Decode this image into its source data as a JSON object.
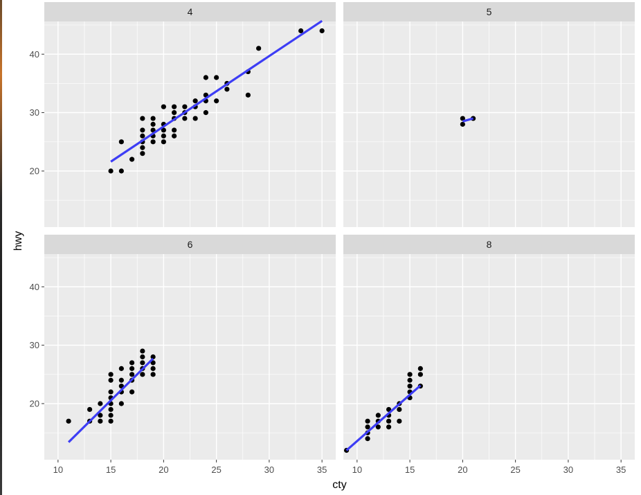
{
  "chart_data": {
    "type": "scatter",
    "xlabel": "cty",
    "ylabel": "hwy",
    "xlim": [
      8.7,
      36.3
    ],
    "ylim": [
      10.4,
      45.6
    ],
    "x_ticks": [
      10,
      15,
      20,
      25,
      30,
      35
    ],
    "y_ticks": [
      20,
      30,
      40
    ],
    "grid": true,
    "smooth": {
      "method": "lm",
      "color": "#3d3df5"
    },
    "panels": [
      {
        "label": "4",
        "points": [
          [
            15,
            20
          ],
          [
            16,
            20
          ],
          [
            16,
            25
          ],
          [
            17,
            22
          ],
          [
            18,
            23
          ],
          [
            18,
            24
          ],
          [
            18,
            25
          ],
          [
            18,
            26
          ],
          [
            18,
            27
          ],
          [
            18,
            29
          ],
          [
            19,
            25
          ],
          [
            19,
            26
          ],
          [
            19,
            27
          ],
          [
            19,
            28
          ],
          [
            19,
            29
          ],
          [
            20,
            25
          ],
          [
            20,
            26
          ],
          [
            20,
            27
          ],
          [
            20,
            28
          ],
          [
            20,
            31
          ],
          [
            21,
            26
          ],
          [
            21,
            27
          ],
          [
            21,
            29
          ],
          [
            21,
            30
          ],
          [
            21,
            31
          ],
          [
            22,
            29
          ],
          [
            22,
            30
          ],
          [
            22,
            31
          ],
          [
            23,
            29
          ],
          [
            23,
            31
          ],
          [
            23,
            32
          ],
          [
            24,
            30
          ],
          [
            24,
            32
          ],
          [
            24,
            33
          ],
          [
            24,
            36
          ],
          [
            25,
            32
          ],
          [
            25,
            36
          ],
          [
            26,
            34
          ],
          [
            26,
            35
          ],
          [
            28,
            33
          ],
          [
            28,
            37
          ],
          [
            29,
            41
          ],
          [
            33,
            44
          ],
          [
            35,
            44
          ]
        ],
        "fit": [
          [
            15,
            21.6
          ],
          [
            35,
            45.7
          ]
        ]
      },
      {
        "label": "5",
        "points": [
          [
            20,
            28
          ],
          [
            20,
            29
          ],
          [
            21,
            29
          ]
        ],
        "fit": [
          [
            20,
            28.5
          ],
          [
            21,
            29
          ]
        ]
      },
      {
        "label": "6",
        "points": [
          [
            11,
            17
          ],
          [
            13,
            17
          ],
          [
            13,
            19
          ],
          [
            14,
            17
          ],
          [
            14,
            18
          ],
          [
            14,
            20
          ],
          [
            15,
            17
          ],
          [
            15,
            18
          ],
          [
            15,
            19
          ],
          [
            15,
            20
          ],
          [
            15,
            21
          ],
          [
            15,
            22
          ],
          [
            15,
            24
          ],
          [
            15,
            25
          ],
          [
            16,
            20
          ],
          [
            16,
            22
          ],
          [
            16,
            23
          ],
          [
            16,
            24
          ],
          [
            16,
            26
          ],
          [
            17,
            22
          ],
          [
            17,
            24
          ],
          [
            17,
            25
          ],
          [
            17,
            26
          ],
          [
            17,
            27
          ],
          [
            18,
            25
          ],
          [
            18,
            26
          ],
          [
            18,
            27
          ],
          [
            18,
            28
          ],
          [
            18,
            29
          ],
          [
            19,
            25
          ],
          [
            19,
            26
          ],
          [
            19,
            27
          ],
          [
            19,
            28
          ]
        ],
        "fit": [
          [
            11,
            13.4
          ],
          [
            19,
            27.7
          ]
        ]
      },
      {
        "label": "8",
        "points": [
          [
            9,
            12
          ],
          [
            11,
            14
          ],
          [
            11,
            15
          ],
          [
            11,
            16
          ],
          [
            11,
            17
          ],
          [
            12,
            16
          ],
          [
            12,
            17
          ],
          [
            12,
            18
          ],
          [
            13,
            16
          ],
          [
            13,
            17
          ],
          [
            13,
            18
          ],
          [
            13,
            19
          ],
          [
            14,
            17
          ],
          [
            14,
            19
          ],
          [
            14,
            20
          ],
          [
            15,
            21
          ],
          [
            15,
            22
          ],
          [
            15,
            23
          ],
          [
            15,
            24
          ],
          [
            15,
            25
          ],
          [
            16,
            23
          ],
          [
            16,
            25
          ],
          [
            16,
            26
          ]
        ],
        "fit": [
          [
            9,
            12
          ],
          [
            16,
            23.1
          ]
        ]
      }
    ]
  }
}
